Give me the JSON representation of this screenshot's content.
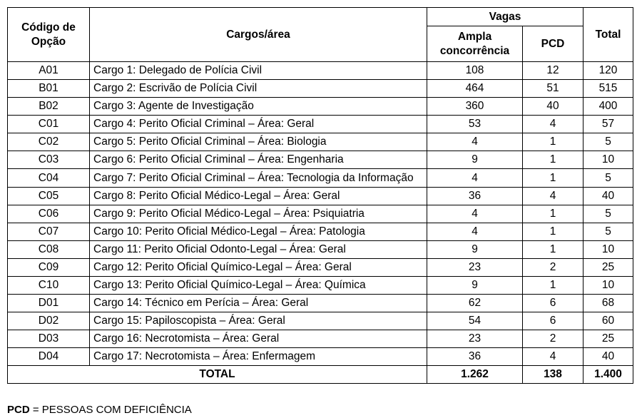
{
  "headers": {
    "codigo": "Código de Opção",
    "cargos": "Cargos/área",
    "vagas": "Vagas",
    "ampla": "Ampla concorrência",
    "pcd": "PCD",
    "total": "Total"
  },
  "rows": [
    {
      "code": "A01",
      "cargo": "Cargo 1: Delegado de Polícia Civil",
      "ampla": "108",
      "pcd": "12",
      "total": "120"
    },
    {
      "code": "B01",
      "cargo": "Cargo 2: Escrivão de Polícia Civil",
      "ampla": "464",
      "pcd": "51",
      "total": "515"
    },
    {
      "code": "B02",
      "cargo": "Cargo 3: Agente de Investigação",
      "ampla": "360",
      "pcd": "40",
      "total": "400"
    },
    {
      "code": "C01",
      "cargo": "Cargo 4: Perito Oficial Criminal – Área: Geral",
      "ampla": "53",
      "pcd": "4",
      "total": "57"
    },
    {
      "code": "C02",
      "cargo": "Cargo 5: Perito Oficial Criminal – Área: Biologia",
      "ampla": "4",
      "pcd": "1",
      "total": "5"
    },
    {
      "code": "C03",
      "cargo": "Cargo 6: Perito Oficial Criminal – Área: Engenharia",
      "ampla": "9",
      "pcd": "1",
      "total": "10"
    },
    {
      "code": "C04",
      "cargo": "Cargo 7: Perito Oficial Criminal – Área: Tecnologia da Informação",
      "ampla": "4",
      "pcd": "1",
      "total": "5"
    },
    {
      "code": "C05",
      "cargo": "Cargo 8: Perito Oficial Médico-Legal – Área: Geral",
      "ampla": "36",
      "pcd": "4",
      "total": "40"
    },
    {
      "code": "C06",
      "cargo": "Cargo 9: Perito Oficial Médico-Legal – Área: Psiquiatria",
      "ampla": "4",
      "pcd": "1",
      "total": "5"
    },
    {
      "code": "C07",
      "cargo": "Cargo 10: Perito Oficial Médico-Legal – Área: Patologia",
      "ampla": "4",
      "pcd": "1",
      "total": "5"
    },
    {
      "code": "C08",
      "cargo": "Cargo 11: Perito Oficial Odonto-Legal – Área: Geral",
      "ampla": "9",
      "pcd": "1",
      "total": "10"
    },
    {
      "code": "C09",
      "cargo": "Cargo 12: Perito Oficial Químico-Legal – Área: Geral",
      "ampla": "23",
      "pcd": "2",
      "total": "25"
    },
    {
      "code": "C10",
      "cargo": "Cargo 13: Perito Oficial Químico-Legal – Área: Química",
      "ampla": "9",
      "pcd": "1",
      "total": "10"
    },
    {
      "code": "D01",
      "cargo": "Cargo 14: Técnico em Perícia – Área: Geral",
      "ampla": "62",
      "pcd": "6",
      "total": "68"
    },
    {
      "code": "D02",
      "cargo": "Cargo 15: Papiloscopista – Área: Geral",
      "ampla": "54",
      "pcd": "6",
      "total": "60"
    },
    {
      "code": "D03",
      "cargo": "Cargo 16: Necrotomista – Área: Geral",
      "ampla": "23",
      "pcd": "2",
      "total": "25"
    },
    {
      "code": "D04",
      "cargo": "Cargo 17: Necrotomista – Área: Enfermagem",
      "ampla": "36",
      "pcd": "4",
      "total": "40"
    }
  ],
  "total_row": {
    "label": "TOTAL",
    "ampla": "1.262",
    "pcd": "138",
    "total": "1.400"
  },
  "footnote": {
    "abbr": "PCD",
    "text": " = PESSOAS COM DEFICIÊNCIA"
  }
}
